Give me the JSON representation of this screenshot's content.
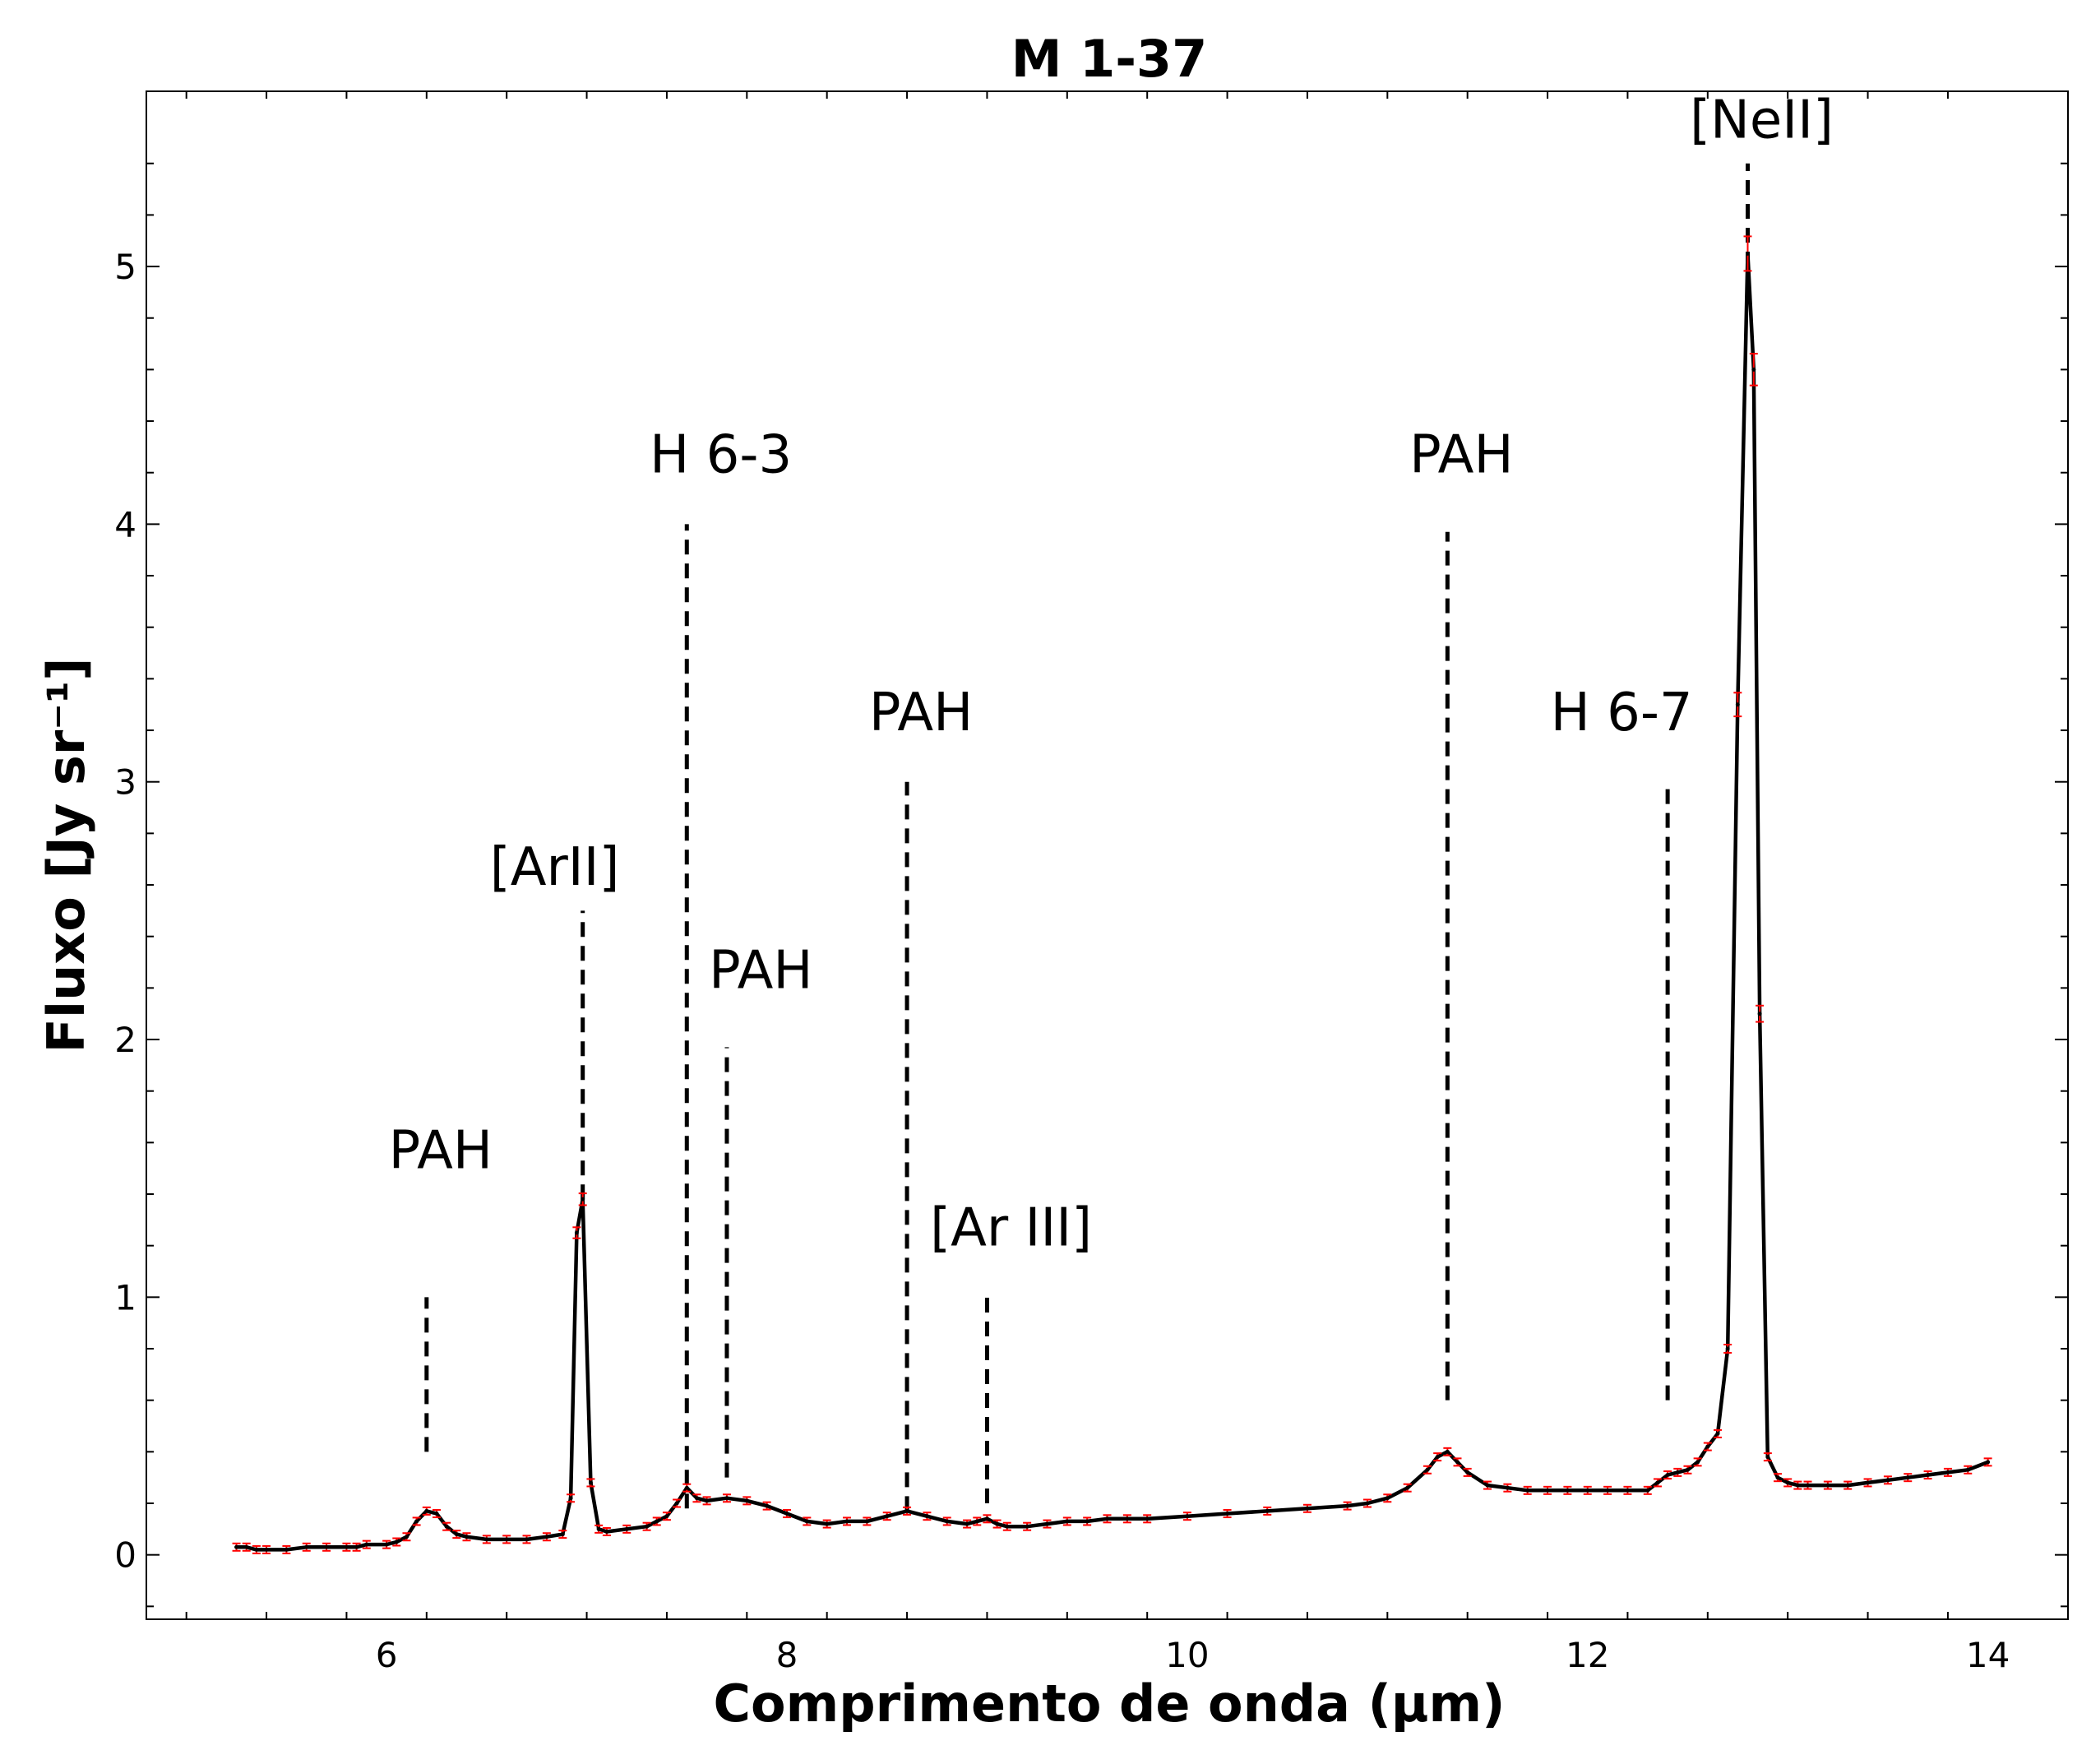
{
  "chart_data": {
    "type": "line",
    "title": "M 1-37",
    "xlabel": "Comprimento de onda (μm)",
    "ylabel": "Fluxo [Jy sr⁻¹]",
    "xlim": [
      4.8,
      14.4
    ],
    "ylim": [
      -0.25,
      5.68
    ],
    "xticks": [
      6,
      8,
      10,
      12,
      14
    ],
    "yticks": [
      0,
      1,
      2,
      3,
      4,
      5
    ],
    "grid": false,
    "colors": {
      "line": "#000000",
      "errorbar": "#ff0000",
      "marker": "#000000"
    },
    "series": [
      {
        "x": [
          5.25,
          5.3,
          5.35,
          5.4,
          5.5,
          5.6,
          5.7,
          5.8,
          5.85,
          5.9,
          6.0,
          6.05,
          6.1,
          6.15,
          6.2,
          6.25,
          6.3,
          6.35,
          6.4,
          6.5,
          6.6,
          6.7,
          6.8,
          6.88,
          6.92,
          6.95,
          6.98,
          7.02,
          7.06,
          7.1,
          7.2,
          7.3,
          7.35,
          7.4,
          7.45,
          7.5,
          7.55,
          7.6,
          7.7,
          7.8,
          7.9,
          8.0,
          8.1,
          8.2,
          8.3,
          8.4,
          8.5,
          8.6,
          8.7,
          8.8,
          8.9,
          8.95,
          9.0,
          9.05,
          9.1,
          9.2,
          9.3,
          9.4,
          9.5,
          9.6,
          9.7,
          9.8,
          10.0,
          10.2,
          10.4,
          10.6,
          10.8,
          10.9,
          11.0,
          11.1,
          11.2,
          11.25,
          11.3,
          11.35,
          11.4,
          11.5,
          11.6,
          11.7,
          11.8,
          11.9,
          12.0,
          12.1,
          12.2,
          12.3,
          12.35,
          12.4,
          12.45,
          12.5,
          12.55,
          12.6,
          12.65,
          12.7,
          12.75,
          12.8,
          12.83,
          12.86,
          12.9,
          12.95,
          13.0,
          13.05,
          13.1,
          13.2,
          13.3,
          13.4,
          13.5,
          13.6,
          13.7,
          13.8,
          13.9,
          14.0
        ],
        "y": [
          0.03,
          0.03,
          0.02,
          0.02,
          0.02,
          0.03,
          0.03,
          0.03,
          0.03,
          0.04,
          0.04,
          0.05,
          0.07,
          0.13,
          0.17,
          0.16,
          0.11,
          0.08,
          0.07,
          0.06,
          0.06,
          0.06,
          0.07,
          0.08,
          0.22,
          1.25,
          1.38,
          0.28,
          0.1,
          0.09,
          0.1,
          0.11,
          0.13,
          0.15,
          0.2,
          0.26,
          0.22,
          0.21,
          0.22,
          0.21,
          0.19,
          0.16,
          0.13,
          0.12,
          0.13,
          0.13,
          0.15,
          0.17,
          0.15,
          0.13,
          0.12,
          0.13,
          0.14,
          0.12,
          0.11,
          0.11,
          0.12,
          0.13,
          0.13,
          0.14,
          0.14,
          0.14,
          0.15,
          0.16,
          0.17,
          0.18,
          0.19,
          0.2,
          0.22,
          0.26,
          0.33,
          0.38,
          0.4,
          0.36,
          0.32,
          0.27,
          0.26,
          0.25,
          0.25,
          0.25,
          0.25,
          0.25,
          0.25,
          0.25,
          0.28,
          0.31,
          0.32,
          0.33,
          0.36,
          0.42,
          0.47,
          0.8,
          3.3,
          5.05,
          4.6,
          2.1,
          0.38,
          0.3,
          0.28,
          0.27,
          0.27,
          0.27,
          0.27,
          0.28,
          0.29,
          0.3,
          0.31,
          0.32,
          0.33,
          0.36
        ]
      }
    ],
    "annotations": [
      {
        "label": "PAH",
        "x": 6.2,
        "y_bottom": 0.4,
        "y_top": 1.0,
        "text_x": 6.27,
        "text_y": 1.5
      },
      {
        "label": "[ArII]",
        "x": 6.98,
        "y_bottom": 1.38,
        "y_top": 2.5,
        "text_x": 6.84,
        "text_y": 2.6
      },
      {
        "label": "H 6-3",
        "x": 7.5,
        "y_bottom": 0.18,
        "y_top": 4.0,
        "text_x": 7.67,
        "text_y": 4.2
      },
      {
        "label": "PAH",
        "x": 7.7,
        "y_bottom": 0.3,
        "y_top": 1.97,
        "text_x": 7.87,
        "text_y": 2.2
      },
      {
        "label": "PAH",
        "x": 8.6,
        "y_bottom": 0.17,
        "y_top": 3.0,
        "text_x": 8.67,
        "text_y": 3.2
      },
      {
        "label": "[Ar III]",
        "x": 9.0,
        "y_bottom": 0.2,
        "y_top": 1.0,
        "text_x": 9.12,
        "text_y": 1.2
      },
      {
        "label": "PAH",
        "x": 11.3,
        "y_bottom": 0.6,
        "y_top": 3.97,
        "text_x": 11.37,
        "text_y": 4.2
      },
      {
        "label": "H 6-7",
        "x": 12.4,
        "y_bottom": 0.6,
        "y_top": 3.0,
        "text_x": 12.17,
        "text_y": 3.2
      },
      {
        "label": "[NeII]",
        "x": 12.8,
        "y_bottom": 5.0,
        "y_top": 5.4,
        "text_x": 12.87,
        "text_y": 5.5
      }
    ]
  }
}
